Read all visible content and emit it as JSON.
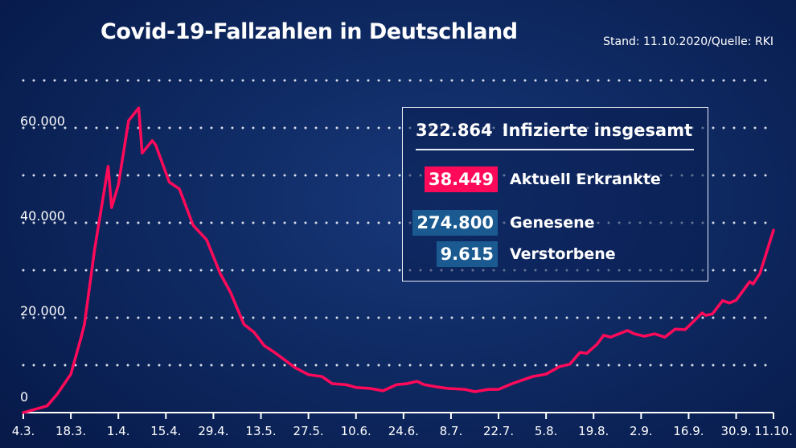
{
  "title": "Covid-19-Fallzahlen in Deutschland",
  "source": "Stand: 11.10.2020/Quelle: RKI",
  "stats": {
    "total": {
      "value": "322.864",
      "label": "Infizierte insgesamt"
    },
    "active": {
      "value": "38.449",
      "label": "Aktuell Erkrankte",
      "color": "#ff0a5a"
    },
    "recovered": {
      "value": "274.800",
      "label": "Genesene",
      "color": "#1a5a91"
    },
    "deaths": {
      "value": "9.615",
      "label": "Verstorbene",
      "color": "#1a5a91"
    }
  },
  "chart_data": {
    "type": "line",
    "title": "",
    "xlabel": "",
    "ylabel": "",
    "xlim": [
      "2020-03-04",
      "2020-10-11"
    ],
    "ylim": [
      0,
      70000
    ],
    "grid": "horizontal dotted",
    "line_color": "#ff0a5a",
    "x_ticks": [
      {
        "date": "2020-03-04",
        "label": "4.3."
      },
      {
        "date": "2020-03-18",
        "label": "18.3."
      },
      {
        "date": "2020-04-01",
        "label": "1.4."
      },
      {
        "date": "2020-04-15",
        "label": "15.4."
      },
      {
        "date": "2020-04-29",
        "label": "29.4."
      },
      {
        "date": "2020-05-13",
        "label": "13.5."
      },
      {
        "date": "2020-05-27",
        "label": "27.5."
      },
      {
        "date": "2020-06-10",
        "label": "10.6."
      },
      {
        "date": "2020-06-24",
        "label": "24.6."
      },
      {
        "date": "2020-07-08",
        "label": "8.7."
      },
      {
        "date": "2020-07-22",
        "label": "22.7."
      },
      {
        "date": "2020-08-05",
        "label": "5.8."
      },
      {
        "date": "2020-08-19",
        "label": "19.8."
      },
      {
        "date": "2020-09-02",
        "label": "2.9."
      },
      {
        "date": "2020-09-16",
        "label": "16.9."
      },
      {
        "date": "2020-09-30",
        "label": "30.9."
      },
      {
        "date": "2020-10-11",
        "label": "11.10."
      }
    ],
    "y_ticks": [
      {
        "value": 0,
        "label": "0"
      },
      {
        "value": 20000,
        "label": "20.000"
      },
      {
        "value": 40000,
        "label": "40.000"
      },
      {
        "value": 60000,
        "label": "60.000"
      }
    ],
    "gridlines": [
      10000,
      20000,
      30000,
      40000,
      50000,
      60000,
      70000
    ],
    "series": [
      {
        "points": [
          [
            "2020-03-04",
            0
          ],
          [
            "2020-03-11",
            1400
          ],
          [
            "2020-03-14",
            3900
          ],
          [
            "2020-03-18",
            8100
          ],
          [
            "2020-03-21",
            15800
          ],
          [
            "2020-03-22",
            18600
          ],
          [
            "2020-03-25",
            34400
          ],
          [
            "2020-03-28",
            47500
          ],
          [
            "2020-03-29",
            51900
          ],
          [
            "2020-03-30",
            43200
          ],
          [
            "2020-04-01",
            48000
          ],
          [
            "2020-04-04",
            61500
          ],
          [
            "2020-04-07",
            64200
          ],
          [
            "2020-04-08",
            54700
          ],
          [
            "2020-04-11",
            57300
          ],
          [
            "2020-04-12",
            56400
          ],
          [
            "2020-04-16",
            48600
          ],
          [
            "2020-04-19",
            47100
          ],
          [
            "2020-04-23",
            39500
          ],
          [
            "2020-04-27",
            36400
          ],
          [
            "2020-05-01",
            29300
          ],
          [
            "2020-05-04",
            25400
          ],
          [
            "2020-05-08",
            18600
          ],
          [
            "2020-05-11",
            16900
          ],
          [
            "2020-05-14",
            14100
          ],
          [
            "2020-05-17",
            12700
          ],
          [
            "2020-05-23",
            9500
          ],
          [
            "2020-05-27",
            8000
          ],
          [
            "2020-05-31",
            7600
          ],
          [
            "2020-06-03",
            6100
          ],
          [
            "2020-06-07",
            5900
          ],
          [
            "2020-06-10",
            5300
          ],
          [
            "2020-06-14",
            5100
          ],
          [
            "2020-06-18",
            4600
          ],
          [
            "2020-06-22",
            5900
          ],
          [
            "2020-06-25",
            6100
          ],
          [
            "2020-06-28",
            6600
          ],
          [
            "2020-06-30",
            5900
          ],
          [
            "2020-07-04",
            5400
          ],
          [
            "2020-07-07",
            5100
          ],
          [
            "2020-07-12",
            4900
          ],
          [
            "2020-07-15",
            4400
          ],
          [
            "2020-07-19",
            4900
          ],
          [
            "2020-07-22",
            4900
          ],
          [
            "2020-07-26",
            6100
          ],
          [
            "2020-08-01",
            7600
          ],
          [
            "2020-08-05",
            8100
          ],
          [
            "2020-08-09",
            9700
          ],
          [
            "2020-08-12",
            10200
          ],
          [
            "2020-08-15",
            12700
          ],
          [
            "2020-08-17",
            12500
          ],
          [
            "2020-08-20",
            14400
          ],
          [
            "2020-08-22",
            16300
          ],
          [
            "2020-08-24",
            15900
          ],
          [
            "2020-08-29",
            17300
          ],
          [
            "2020-08-31",
            16600
          ],
          [
            "2020-09-03",
            16100
          ],
          [
            "2020-09-06",
            16600
          ],
          [
            "2020-09-09",
            15900
          ],
          [
            "2020-09-12",
            17600
          ],
          [
            "2020-09-15",
            17500
          ],
          [
            "2020-09-20",
            21000
          ],
          [
            "2020-09-21",
            20500
          ],
          [
            "2020-09-23",
            20800
          ],
          [
            "2020-09-26",
            23600
          ],
          [
            "2020-09-28",
            23100
          ],
          [
            "2020-09-30",
            23700
          ],
          [
            "2020-10-04",
            27600
          ],
          [
            "2020-10-05",
            27100
          ],
          [
            "2020-10-07",
            29300
          ],
          [
            "2020-10-11",
            38449
          ]
        ]
      }
    ]
  }
}
